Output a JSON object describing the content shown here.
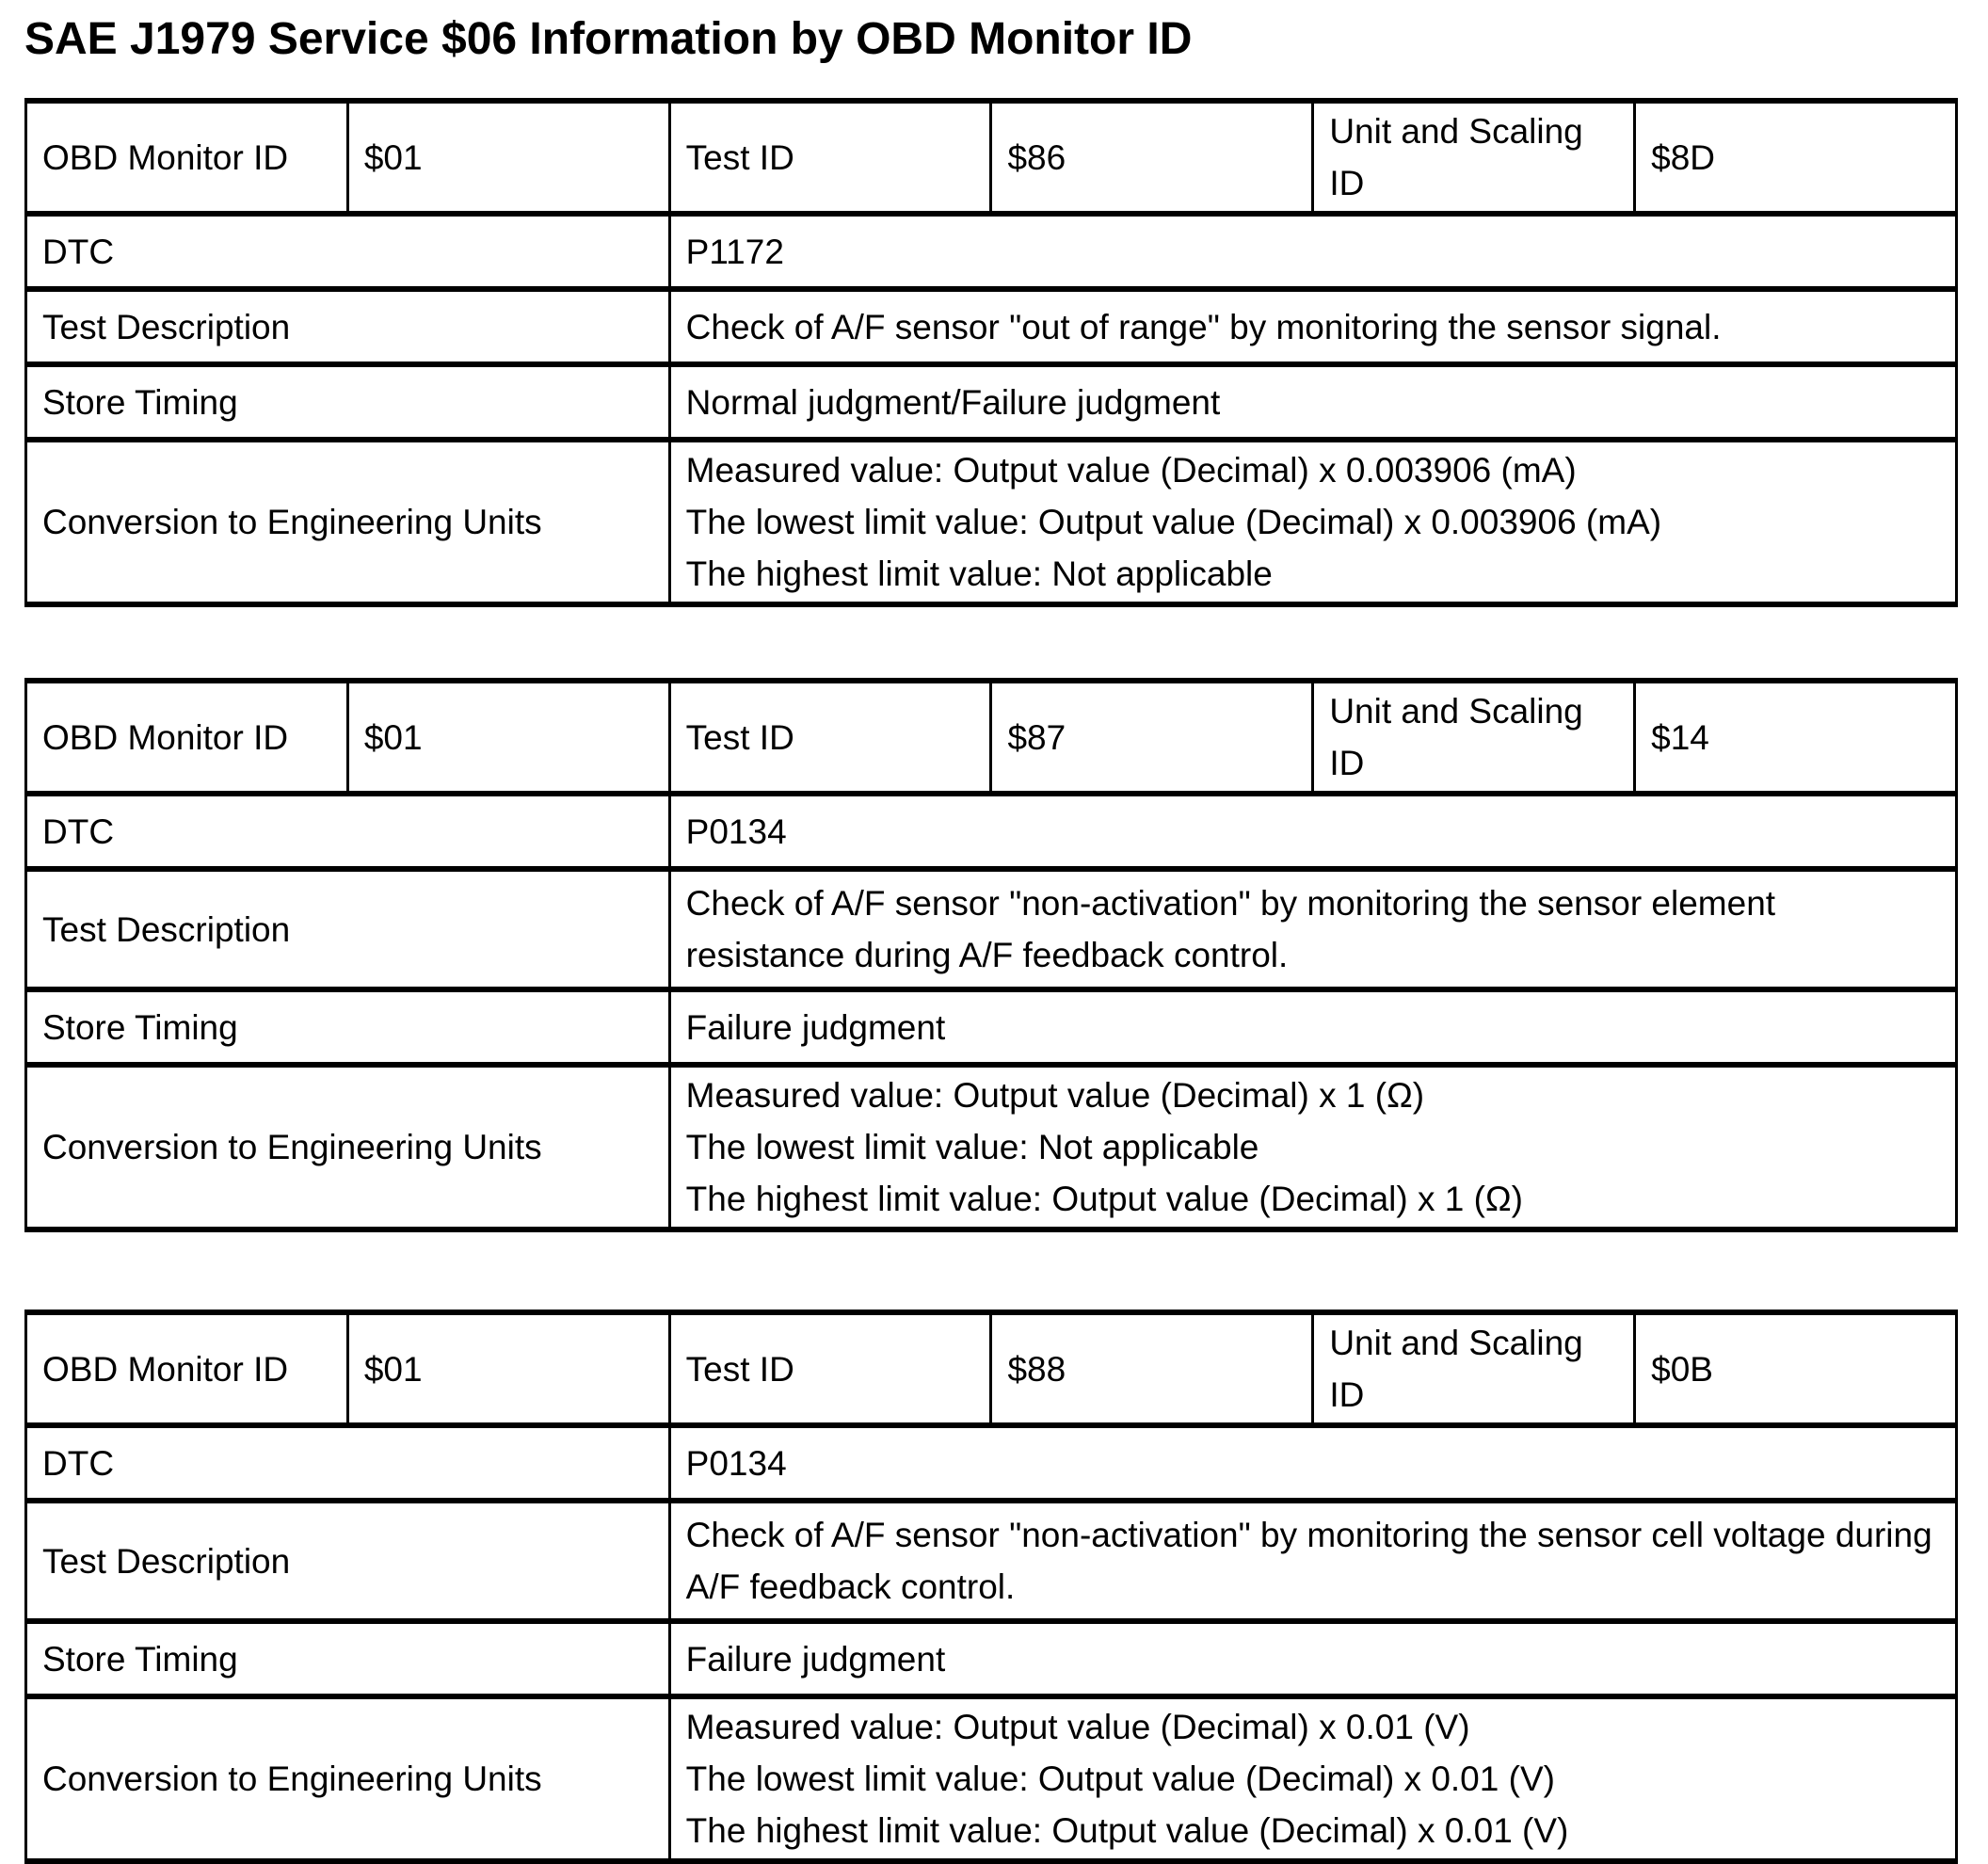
{
  "page": {
    "title": "SAE J1979 Service $06 Information by OBD Monitor ID"
  },
  "labels": {
    "obd_monitor_id": "OBD Monitor ID",
    "test_id": "Test ID",
    "unit_scaling_id": "Unit and Scaling ID",
    "dtc": "DTC",
    "test_description": "Test Description",
    "store_timing": "Store Timing",
    "conversion": "Conversion to Engineering Units"
  },
  "tables": [
    {
      "obd_monitor_id": "$01",
      "test_id": "$86",
      "unit_scaling_id": "$8D",
      "dtc": "P1172",
      "test_description": "Check of A/F sensor \"out of range\" by monitoring the sensor signal.",
      "store_timing": "Normal judgment/Failure judgment",
      "conversion_lines": [
        "Measured value: Output value (Decimal) x 0.003906 (mA)",
        "The lowest limit value: Output value (Decimal) x 0.003906 (mA)",
        "The highest limit value: Not applicable"
      ]
    },
    {
      "obd_monitor_id": "$01",
      "test_id": "$87",
      "unit_scaling_id": "$14",
      "dtc": "P0134",
      "test_description": "Check of A/F sensor \"non-activation\" by monitoring the sensor element resistance during A/F feedback control.",
      "store_timing": "Failure judgment",
      "conversion_lines": [
        "Measured value: Output value (Decimal) x 1 (Ω)",
        "The lowest limit value: Not applicable",
        "The highest limit value: Output value (Decimal) x 1 (Ω)"
      ]
    },
    {
      "obd_monitor_id": "$01",
      "test_id": "$88",
      "unit_scaling_id": "$0B",
      "dtc": "P0134",
      "test_description": "Check of A/F sensor \"non-activation\" by monitoring the sensor cell voltage during A/F feedback control.",
      "store_timing": "Failure judgment",
      "conversion_lines": [
        "Measured value: Output value (Decimal) x 0.01 (V)",
        "The lowest limit value: Output value (Decimal) x 0.01 (V)",
        "The highest limit value: Output value (Decimal) x 0.01 (V)"
      ]
    }
  ]
}
